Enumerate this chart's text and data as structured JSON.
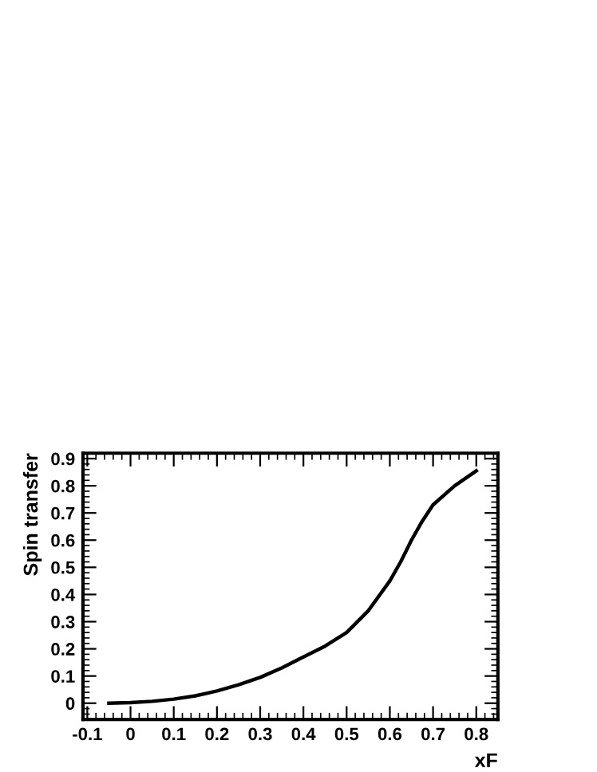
{
  "chart_data": {
    "type": "line",
    "xlabel": "xF",
    "ylabel": "Spin transfer",
    "x": [
      -0.05,
      0,
      0.05,
      0.1,
      0.15,
      0.2,
      0.25,
      0.3,
      0.35,
      0.4,
      0.45,
      0.5,
      0.55,
      0.6,
      0.625,
      0.65,
      0.675,
      0.7,
      0.75,
      0.8
    ],
    "series": [
      {
        "color": "#000000",
        "values": [
          0.0,
          0.002,
          0.007,
          0.015,
          0.027,
          0.045,
          0.068,
          0.095,
          0.13,
          0.17,
          0.21,
          0.26,
          0.34,
          0.45,
          0.52,
          0.6,
          0.67,
          0.73,
          0.8,
          0.855
        ]
      }
    ],
    "xlim": [
      -0.11,
      0.85
    ],
    "ylim": [
      -0.06,
      0.92
    ],
    "xticks": [
      -0.1,
      0,
      0.1,
      0.2,
      0.3,
      0.4,
      0.5,
      0.6,
      0.7,
      0.8
    ],
    "yticks": [
      0,
      0.1,
      0.2,
      0.3,
      0.4,
      0.5,
      0.6,
      0.7,
      0.8,
      0.9
    ],
    "grid": false,
    "legend": false,
    "marker": "none",
    "line_style": "solid"
  }
}
